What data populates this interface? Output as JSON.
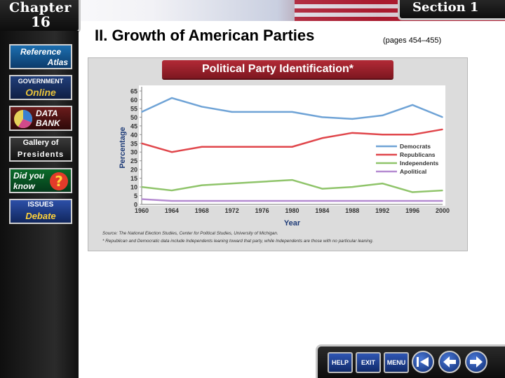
{
  "header": {
    "chapter_label": "Chapter",
    "chapter_number": "16",
    "section_label": "Section 1"
  },
  "sidebar": {
    "items": [
      {
        "line1": "Reference",
        "line2": "Atlas"
      },
      {
        "line1": "GOVERNMENT",
        "line2": "Online"
      },
      {
        "line1": "DATA",
        "line2": "BANK"
      },
      {
        "line1": "Gallery of",
        "line2": "Presidents"
      },
      {
        "line1": "Did you",
        "line2": "know"
      },
      {
        "line1": "ISSUES",
        "line2": "Debate"
      }
    ]
  },
  "slide": {
    "title": "II. Growth of American Parties",
    "pages": "(pages 454–455)"
  },
  "chart_data": {
    "type": "line",
    "title": "Political Party Identification*",
    "xlabel": "Year",
    "ylabel": "Percentage",
    "x": [
      1960,
      1964,
      1968,
      1972,
      1976,
      1980,
      1984,
      1988,
      1992,
      1996,
      2000
    ],
    "ylim": [
      0,
      65
    ],
    "yticks": [
      0,
      5,
      10,
      15,
      20,
      25,
      30,
      35,
      40,
      45,
      50,
      55,
      60,
      65
    ],
    "legend_position": "right",
    "series": [
      {
        "name": "Democrats",
        "color": "#6fa3d6",
        "values": [
          53,
          61,
          56,
          53,
          53,
          53,
          50,
          49,
          51,
          57,
          50
        ]
      },
      {
        "name": "Republicans",
        "color": "#e0464b",
        "values": [
          35,
          30,
          33,
          33,
          33,
          33,
          38,
          41,
          40,
          40,
          43
        ]
      },
      {
        "name": "Independents",
        "color": "#8fc46a",
        "values": [
          10,
          8,
          11,
          12,
          13,
          14,
          9,
          10,
          12,
          7,
          8
        ]
      },
      {
        "name": "Apolitical",
        "color": "#b58bd1",
        "values": [
          3,
          2,
          2,
          2,
          2,
          2,
          2,
          2,
          2,
          2,
          2
        ]
      }
    ],
    "source": "Source: The National Election Studies, Center for Political Studies, University of Michigan.",
    "footnote": "* Republican and Democratic data include Independents leaning toward that party, while Independents are those with no particular leaning."
  },
  "navigation": {
    "help": "HELP",
    "exit": "EXIT",
    "menu": "MENU",
    "first_icon": "first-page-icon",
    "prev_icon": "previous-icon",
    "next_icon": "next-icon"
  }
}
